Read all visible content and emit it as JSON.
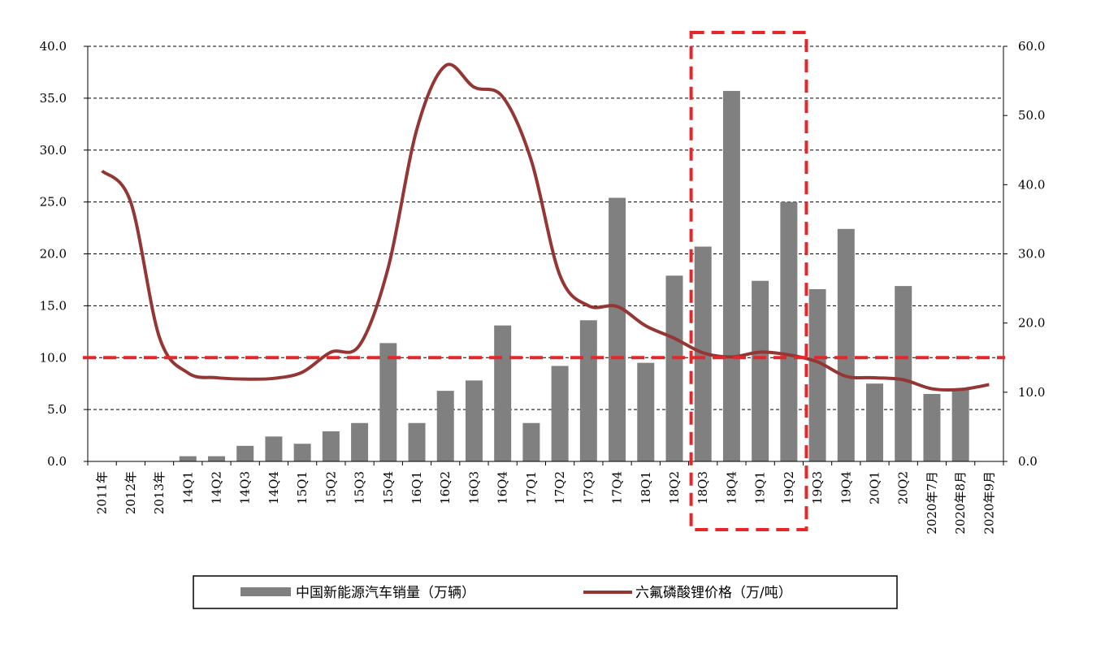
{
  "chart_data": {
    "type": "bar+line",
    "categories": [
      "2011年",
      "2012年",
      "2013年",
      "14Q1",
      "14Q2",
      "14Q3",
      "14Q4",
      "15Q1",
      "15Q2",
      "15Q3",
      "15Q4",
      "16Q1",
      "16Q2",
      "16Q3",
      "16Q4",
      "17Q1",
      "17Q2",
      "17Q3",
      "17Q4",
      "18Q1",
      "18Q2",
      "18Q3",
      "18Q4",
      "19Q1",
      "19Q2",
      "19Q3",
      "19Q4",
      "20Q1",
      "20Q2",
      "2020年7月",
      "2020年8月",
      "2020年9月"
    ],
    "series": [
      {
        "name": "中国新能源汽车销量（万辆）",
        "type": "bar",
        "axis": "left",
        "color": "#808080",
        "values": [
          null,
          null,
          null,
          0.5,
          0.5,
          1.5,
          2.4,
          1.7,
          2.9,
          3.7,
          11.4,
          3.7,
          6.8,
          7.8,
          13.1,
          3.7,
          9.2,
          13.6,
          25.4,
          9.5,
          17.9,
          20.7,
          35.7,
          17.4,
          25.0,
          16.6,
          22.4,
          7.5,
          16.9,
          6.5,
          7.0,
          null
        ]
      },
      {
        "name": "六氟磷酸锂价格（万/吨）",
        "type": "line",
        "axis": "right",
        "color": "#943634",
        "values": [
          42.0,
          37.5,
          18.0,
          12.8,
          12.1,
          11.9,
          12.0,
          12.9,
          15.8,
          16.8,
          28.0,
          48.0,
          57.2,
          54.1,
          52.7,
          43.5,
          26.9,
          22.5,
          22.4,
          19.6,
          17.8,
          15.7,
          15.1,
          15.8,
          15.4,
          14.4,
          12.3,
          12.1,
          11.8,
          10.5,
          10.4,
          11.1
        ]
      }
    ],
    "y_left": {
      "min": 0,
      "max": 40,
      "ticks": [
        "0.0",
        "5.0",
        "10.0",
        "15.0",
        "20.0",
        "25.0",
        "30.0",
        "35.0",
        "40.0"
      ]
    },
    "y_right": {
      "min": 0,
      "max": 60,
      "ticks": [
        "0.0",
        "10.0",
        "20.0",
        "30.0",
        "40.0",
        "50.0",
        "60.0"
      ]
    },
    "grid": "horizontal dashed",
    "annotations": {
      "reference_line_left_value": 10,
      "highlight_box_categories": [
        "18Q3",
        "19Q2"
      ],
      "annotation_color": "#e8262a"
    },
    "legend": {
      "placement": "bottom",
      "items": [
        "中国新能源汽车销量（万辆）",
        "六氟磷酸锂价格（万/吨）"
      ]
    }
  }
}
